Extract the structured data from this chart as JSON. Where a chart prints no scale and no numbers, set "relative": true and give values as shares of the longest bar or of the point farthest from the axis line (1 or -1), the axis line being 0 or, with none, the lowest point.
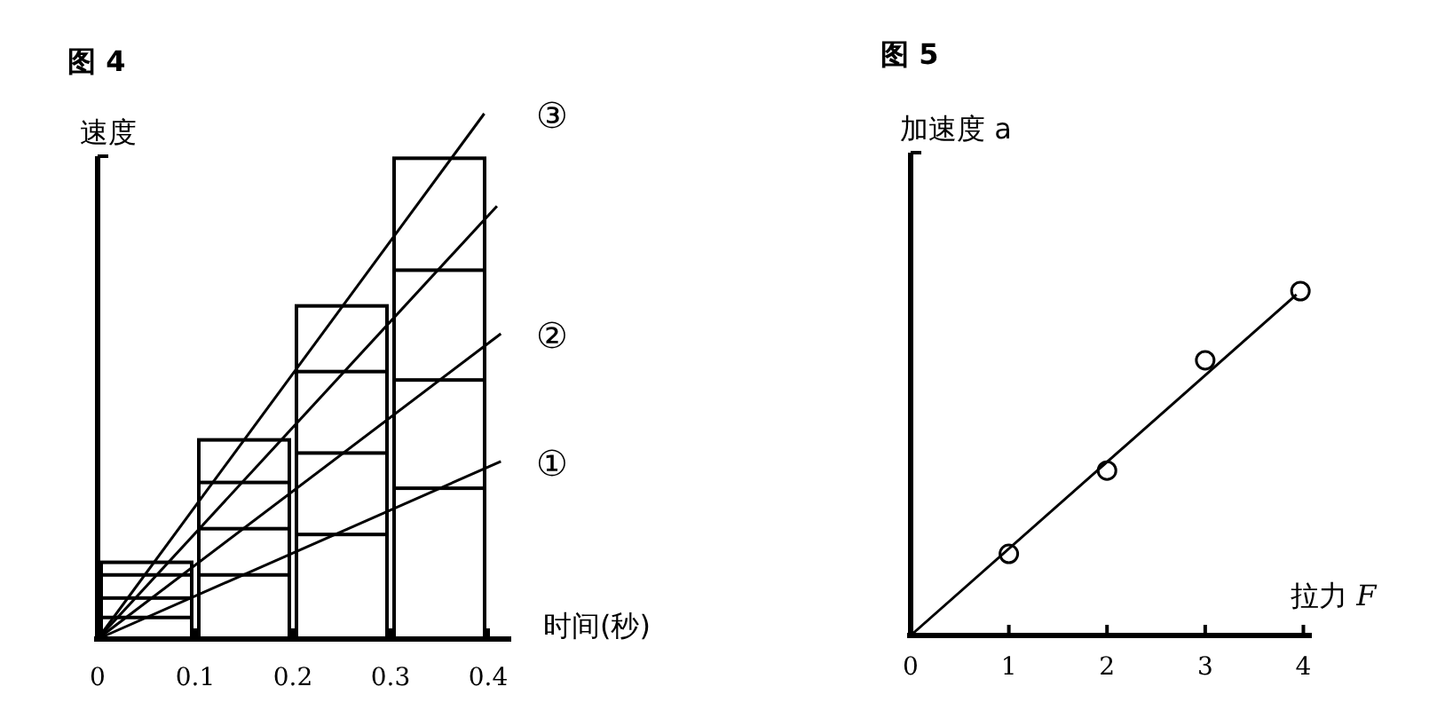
{
  "chart_data": [
    {
      "type": "bar",
      "title": "图 4",
      "xlabel": "时间(秒)",
      "ylabel": "速度",
      "relative": true,
      "x": [
        0.05,
        0.15,
        0.25,
        0.35
      ],
      "xlim": [
        0,
        0.42
      ],
      "xticks": [
        0,
        0.1,
        0.2,
        0.3,
        0.4
      ],
      "series": [
        {
          "color": "#000000",
          "values": [
            0.041,
            0.122,
            0.199,
            0.287
          ]
        },
        {
          "color": "#000000",
          "values": [
            0.078,
            0.21,
            0.354,
            0.493
          ]
        },
        {
          "color": "#000000",
          "values": [
            0.122,
            0.298,
            0.509,
            0.702
          ]
        },
        {
          "color": "#000000",
          "values": [
            0.146,
            0.379,
            0.634,
            0.915
          ]
        },
        {
          "type": "line",
          "name": "①",
          "color": "#000000",
          "x": [
            0,
            0.413
          ],
          "values": [
            0,
            0.338
          ]
        },
        {
          "type": "line",
          "name": "②",
          "color": "#000000",
          "x": [
            0,
            0.413
          ],
          "values": [
            0,
            0.581
          ]
        },
        {
          "type": "line",
          "color": "#000000",
          "x": [
            0,
            0.409
          ],
          "values": [
            0,
            0.824
          ]
        },
        {
          "type": "line",
          "name": "③",
          "color": "#000000",
          "x": [
            0,
            0.396
          ],
          "values": [
            0,
            1
          ]
        }
      ]
    },
    {
      "type": "scatter",
      "title": "图 5",
      "xlabel": "拉力 *F*",
      "ylabel": "加速度 a",
      "relative": true,
      "xlim": [
        0,
        4.05
      ],
      "xticks": [
        0,
        1,
        2,
        3,
        4
      ],
      "series": [
        {
          "color": "#000000",
          "marker": "circle",
          "x": [
            1,
            2,
            3,
            3.97
          ],
          "values": [
            0.237,
            0.479,
            0.799,
            1
          ]
        },
        {
          "type": "line",
          "color": "#000000",
          "x": [
            0,
            3.93
          ],
          "values": [
            0,
            0.99
          ]
        }
      ]
    }
  ]
}
